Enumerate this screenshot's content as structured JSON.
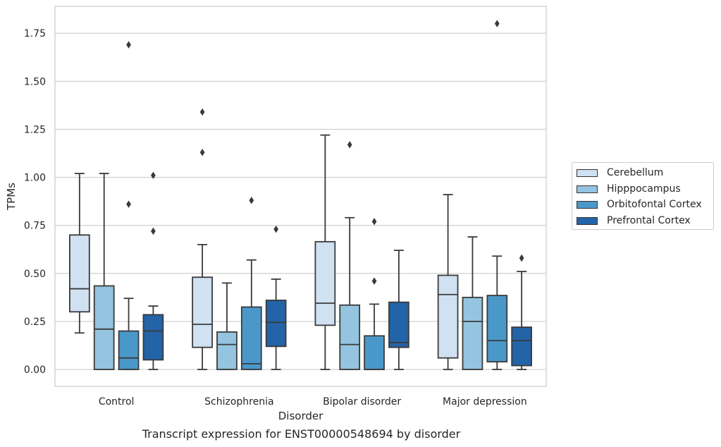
{
  "chart_data": {
    "type": "box",
    "xlabel": "Disorder",
    "ylabel": "TPMs",
    "ylim": [
      -0.088,
      1.89
    ],
    "yticks": [
      "0.00",
      "0.25",
      "0.50",
      "0.75",
      "1.00",
      "1.25",
      "1.50",
      "1.75"
    ],
    "categories": [
      "Control",
      "Schizophrenia",
      "Bipolar disorder",
      "Major depression"
    ],
    "grid": "horizontal",
    "legend_position": "center-right, outside plot",
    "series": [
      {
        "name": "Cerebellum",
        "color": "#d0e1f2",
        "boxes": [
          {
            "whislo": 0.19,
            "q1": 0.3,
            "med": 0.42,
            "q3": 0.7,
            "whishi": 1.02,
            "fliers": []
          },
          {
            "whislo": 0.0,
            "q1": 0.115,
            "med": 0.235,
            "q3": 0.48,
            "whishi": 0.65,
            "fliers": [
              1.13,
              1.34
            ]
          },
          {
            "whislo": 0.0,
            "q1": 0.23,
            "med": 0.345,
            "q3": 0.665,
            "whishi": 1.22,
            "fliers": []
          },
          {
            "whislo": 0.0,
            "q1": 0.06,
            "med": 0.39,
            "q3": 0.49,
            "whishi": 0.91,
            "fliers": []
          }
        ]
      },
      {
        "name": "Hipppocampus",
        "color": "#94c4df",
        "boxes": [
          {
            "whislo": 0.0,
            "q1": 0.0,
            "med": 0.21,
            "q3": 0.435,
            "whishi": 1.02,
            "fliers": []
          },
          {
            "whislo": 0.0,
            "q1": 0.0,
            "med": 0.13,
            "q3": 0.195,
            "whishi": 0.45,
            "fliers": []
          },
          {
            "whislo": 0.0,
            "q1": 0.0,
            "med": 0.13,
            "q3": 0.335,
            "whishi": 0.79,
            "fliers": [
              1.17
            ]
          },
          {
            "whislo": 0.0,
            "q1": 0.0,
            "med": 0.25,
            "q3": 0.375,
            "whishi": 0.69,
            "fliers": []
          }
        ]
      },
      {
        "name": "Orbitofontal Cortex",
        "color": "#4a98c9",
        "boxes": [
          {
            "whislo": 0.0,
            "q1": 0.0,
            "med": 0.06,
            "q3": 0.2,
            "whishi": 0.37,
            "fliers": [
              0.86,
              1.69
            ]
          },
          {
            "whislo": 0.0,
            "q1": 0.0,
            "med": 0.03,
            "q3": 0.325,
            "whishi": 0.57,
            "fliers": [
              0.88
            ]
          },
          {
            "whislo": 0.0,
            "q1": 0.0,
            "med": 0.0,
            "q3": 0.175,
            "whishi": 0.34,
            "fliers": [
              0.46,
              0.77
            ]
          },
          {
            "whislo": 0.0,
            "q1": 0.04,
            "med": 0.15,
            "q3": 0.385,
            "whishi": 0.59,
            "fliers": [
              1.8
            ]
          }
        ]
      },
      {
        "name": "Prefrontal Cortex",
        "color": "#2363a7",
        "boxes": [
          {
            "whislo": 0.0,
            "q1": 0.05,
            "med": 0.2,
            "q3": 0.285,
            "whishi": 0.33,
            "fliers": [
              0.72,
              1.01
            ]
          },
          {
            "whislo": 0.0,
            "q1": 0.12,
            "med": 0.245,
            "q3": 0.36,
            "whishi": 0.47,
            "fliers": [
              0.73
            ]
          },
          {
            "whislo": 0.0,
            "q1": 0.115,
            "med": 0.14,
            "q3": 0.35,
            "whishi": 0.62,
            "fliers": []
          },
          {
            "whislo": 0.0,
            "q1": 0.02,
            "med": 0.15,
            "q3": 0.22,
            "whishi": 0.51,
            "fliers": [
              0.58
            ]
          }
        ]
      }
    ]
  },
  "caption": "Transcript expression for ENST00000548694 by disorder"
}
